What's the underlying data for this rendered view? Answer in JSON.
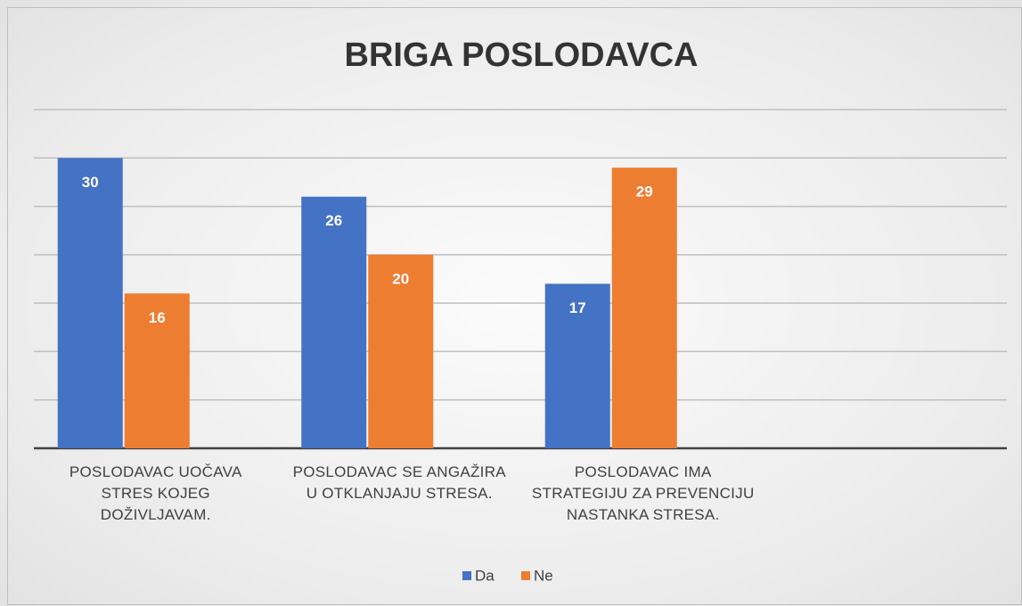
{
  "chart_data": {
    "type": "bar",
    "title": "BRIGA POSLODAVCA",
    "categories": [
      "POSLODAVAC UOČAVA STRES KOJEG DOŽIVLJAVAM.",
      "POSLODAVAC SE ANGAŽIRA U OTKLANJAJU STRESA.",
      "POSLODAVAC IMA STRATEGIJU ZA PREVENCIJU NASTANKA STRESA.",
      null
    ],
    "series": [
      {
        "name": "Da",
        "color": "#4472c4",
        "values": [
          30,
          26,
          17,
          null
        ]
      },
      {
        "name": "Ne",
        "color": "#ed7d31",
        "values": [
          16,
          20,
          29,
          null
        ]
      }
    ],
    "ylim": [
      0,
      35
    ],
    "yticks": [
      0,
      5,
      10,
      15,
      20,
      25,
      30,
      35
    ],
    "grid": true,
    "legend": "bottom"
  }
}
